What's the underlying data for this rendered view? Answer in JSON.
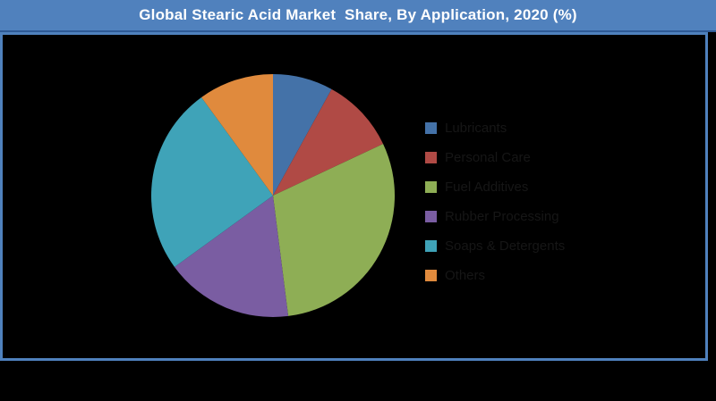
{
  "header": {
    "title": "Global Stearic Acid Market  Share, By Application, 2020 (%)"
  },
  "palette": {
    "title_bar": "#5081BD",
    "title_bar_edge": "#2E5A95",
    "plot_border": "#4F81BD",
    "background": "#000000",
    "title_text": "#FFFFFF",
    "legend_text": "#161616"
  },
  "chart_data": {
    "type": "pie",
    "title": "Global Stearic Acid Market  Share, By Application, 2020 (%)",
    "unit": "%",
    "start_angle_deg": 0,
    "direction": "clockwise",
    "legend_position": "right",
    "categories": [
      "Lubricants",
      "Personal Care",
      "Fuel Additives",
      "Rubber Processing",
      "Soaps & Detergents",
      "Others"
    ],
    "values": [
      8,
      10,
      30,
      17,
      25,
      10
    ],
    "colors": [
      "#4472A8",
      "#B04A45",
      "#8EAE55",
      "#7A5DA2",
      "#3FA3B8",
      "#E08A3D"
    ]
  }
}
